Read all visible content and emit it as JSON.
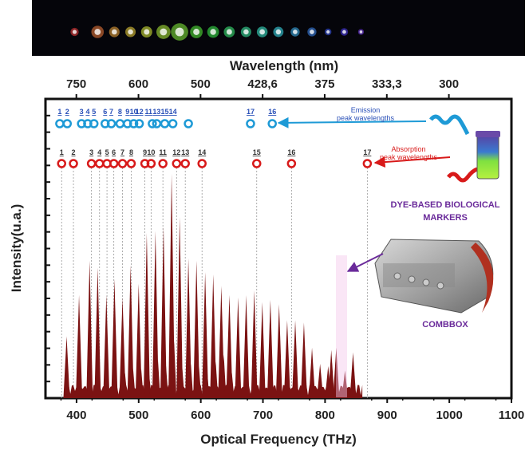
{
  "chart_data": {
    "type": "bar",
    "xlabel": "Optical Frequency (THz)",
    "ylabel": "Intensity(u.a.)",
    "top_axis_label": "Wavelength (nm)",
    "xlim": [
      350,
      1100
    ],
    "ylim": [
      0,
      1
    ],
    "x_ticks": [
      400,
      500,
      600,
      700,
      800,
      900,
      1000,
      1100
    ],
    "top_ticks": [
      {
        "label": "750",
        "freq": 399.7
      },
      {
        "label": "600",
        "freq": 499.7
      },
      {
        "label": "500",
        "freq": 599.6
      },
      {
        "label": "428,6",
        "freq": 699.5
      },
      {
        "label": "375",
        "freq": 799.4
      },
      {
        "label": "333,3",
        "freq": 899.4
      },
      {
        "label": "300",
        "freq": 999.3
      }
    ],
    "y_tick_count": 18,
    "peaks": {
      "freq": [
        384,
        404,
        421,
        434,
        448,
        461,
        474,
        487,
        500,
        513,
        527,
        540,
        553,
        566,
        580,
        593,
        607,
        620,
        633,
        646,
        660,
        673,
        686,
        699,
        712,
        726,
        739,
        752,
        766,
        779,
        792,
        805,
        818,
        832,
        845
      ],
      "intensity": [
        0.27,
        0.45,
        0.6,
        0.57,
        0.45,
        0.52,
        0.44,
        0.58,
        0.5,
        0.72,
        0.73,
        0.75,
        0.98,
        0.79,
        0.61,
        0.6,
        0.55,
        0.54,
        0.49,
        0.45,
        0.44,
        0.45,
        0.47,
        0.42,
        0.43,
        0.41,
        0.34,
        0.34,
        0.33,
        0.22,
        0.15,
        0.14,
        0.22,
        0.12,
        0.08
      ]
    },
    "secondary_peaks": {
      "freq": [
        478,
        491,
        504,
        517,
        531,
        544,
        557,
        570,
        584,
        597,
        610,
        624,
        637,
        650
      ],
      "intensity": [
        0.11,
        0.13,
        0.13,
        0.1,
        0.17,
        0.14,
        0.25,
        0.14,
        0.15,
        0.14,
        0.13,
        0.16,
        0.19,
        0.11
      ]
    },
    "extra_peaks": {
      "freq": [
        810,
        845
      ],
      "intensity": [
        0.21,
        0.2
      ]
    },
    "emission_markers": {
      "labels": [
        "1",
        "2",
        "3",
        "4",
        "5",
        "6",
        "7",
        "8",
        "9",
        "10",
        "11",
        "12",
        "13",
        "14",
        "15",
        "16",
        "17"
      ],
      "display": [
        "1",
        "2",
        "3",
        "4",
        "5",
        "6",
        "7",
        "8",
        "9",
        "10",
        "12",
        "11",
        "13",
        "15",
        "14",
        "17",
        "16"
      ],
      "freq": [
        373,
        385,
        408,
        418,
        428,
        446,
        456,
        470,
        482,
        492,
        501,
        516,
        529,
        542,
        555,
        580,
        680
      ]
    },
    "emission_positions": {
      "freq": [
        373,
        385,
        408,
        418,
        428,
        446,
        456,
        470,
        482,
        492,
        501,
        522,
        529,
        542,
        555,
        580,
        680,
        715
      ]
    },
    "absorption_markers": {
      "labels": [
        "1",
        "2",
        "3",
        "4",
        "5",
        "6",
        "7",
        "8",
        "9",
        "10",
        "11",
        "12",
        "13",
        "14",
        "15",
        "16",
        "17"
      ],
      "freq": [
        376,
        395,
        424,
        437,
        449,
        460,
        474,
        488,
        510,
        520,
        539,
        561,
        575,
        602,
        690,
        746,
        868
      ]
    },
    "absorption_positions": {
      "freq": [
        376,
        395,
        424,
        437,
        449,
        460,
        474,
        488,
        510,
        520,
        539,
        561,
        575,
        602,
        690,
        746,
        868
      ]
    },
    "dashed_lines_freq": [
      376,
      395,
      424,
      437,
      449,
      460,
      474,
      488,
      510,
      520,
      539,
      561,
      575,
      602,
      690,
      746,
      868
    ],
    "annotations": {
      "emission": [
        "Emission",
        "peak wavelengths"
      ],
      "absorption": [
        "Absorption",
        "peak wavelengths"
      ],
      "markers": [
        "DYE-BASED BIOLOGICAL",
        "MARKERS"
      ],
      "combbox": "COMBBOX"
    }
  },
  "colors": {
    "bar": "#7b1212",
    "emission": "#1e9ad6",
    "absorption": "#d81a1a",
    "purple": "#6a2a9a",
    "emission_text": "#2a50b8"
  }
}
